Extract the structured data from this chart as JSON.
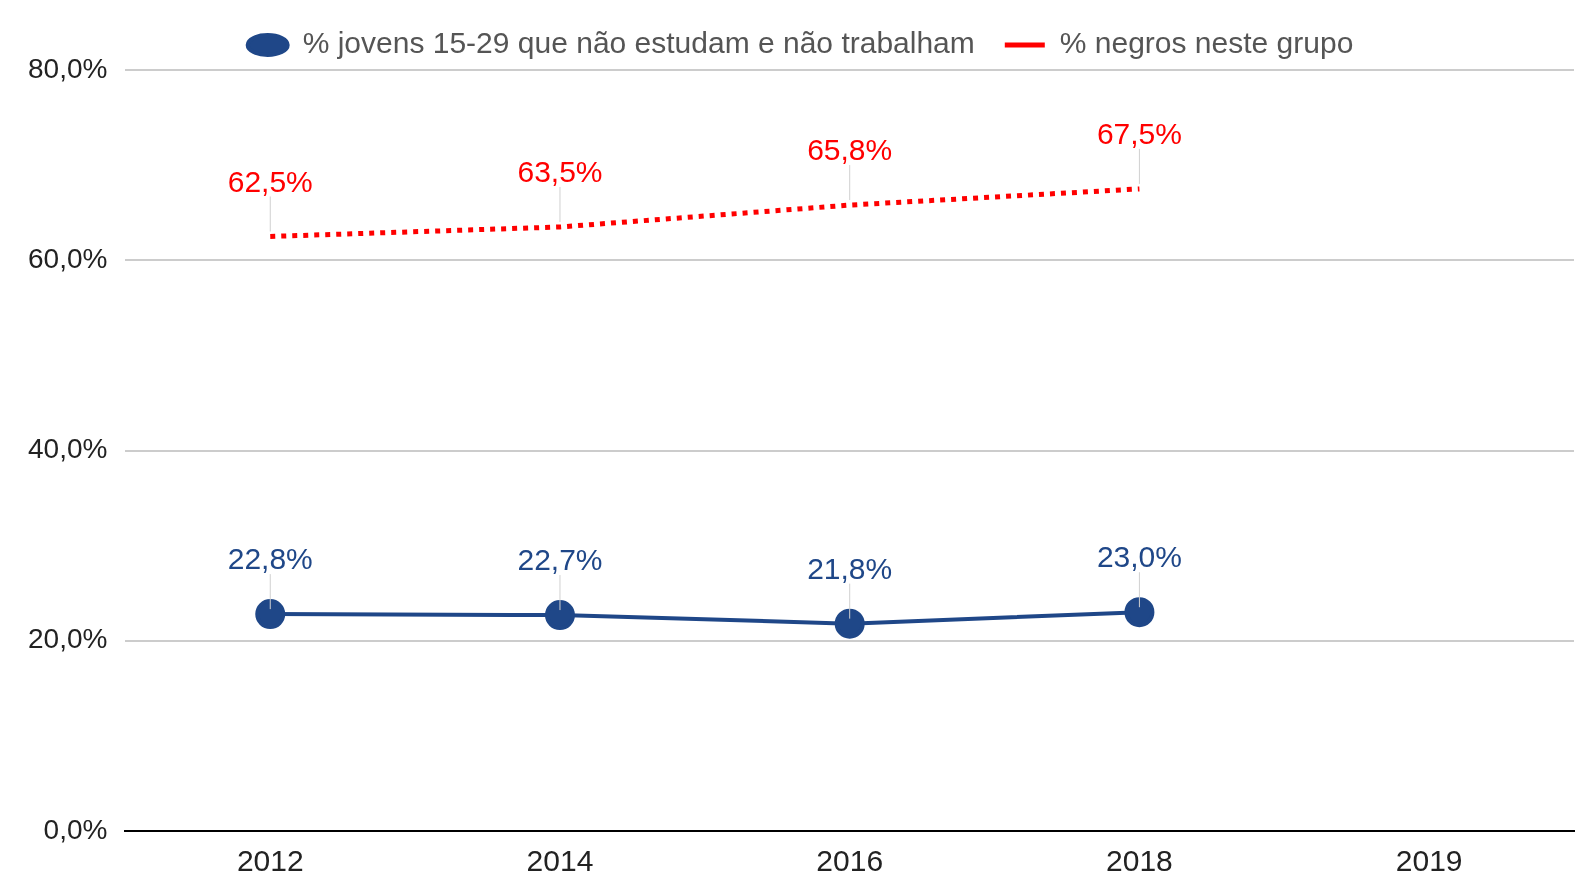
{
  "chart_data": {
    "type": "line",
    "categories": [
      "2012",
      "2014",
      "2016",
      "2018",
      "2019"
    ],
    "series": [
      {
        "name": "% jovens 15-29 que não estudam e não trabalham",
        "color": "#1f4788",
        "values": [
          22.8,
          22.7,
          21.8,
          23.0,
          null
        ],
        "value_labels": [
          "22,8%",
          "22,7%",
          "21,8%",
          "23,0%",
          null
        ],
        "marker": "circle",
        "line_style": "solid"
      },
      {
        "name": "% negros neste grupo",
        "color": "#ff0000",
        "values": [
          62.5,
          63.5,
          65.8,
          67.5,
          null
        ],
        "value_labels": [
          "62,5%",
          "63,5%",
          "65,8%",
          "67,5%",
          null
        ],
        "marker": "none",
        "line_style": "dotted"
      }
    ],
    "ylim": [
      0,
      80
    ],
    "yticks": [
      {
        "value": 0,
        "label": "0,0%"
      },
      {
        "value": 20,
        "label": "20,0%"
      },
      {
        "value": 40,
        "label": "40,0%"
      },
      {
        "value": 60,
        "label": "60,0%"
      },
      {
        "value": 80,
        "label": "80,0%"
      }
    ],
    "grid": "y",
    "legend": "top"
  }
}
